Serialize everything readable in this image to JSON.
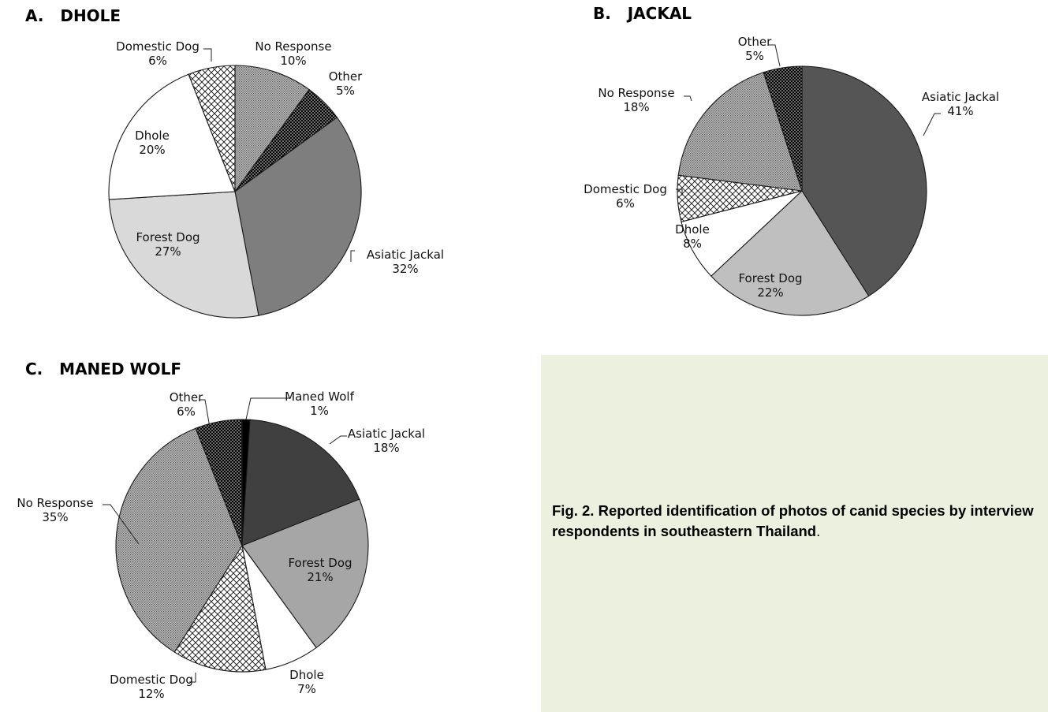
{
  "figure": {
    "caption_bold": "Fig. 2.  Reported identification of photos of canid species by interview respondents in southeastern Thailand",
    "caption_end": "."
  },
  "colors": {
    "Asiatic Jackal": "#7e7e7e",
    "Forest Dog": "#d9d9d9",
    "Dhole": "#ffffff",
    "Domestic Dog": "crosshatch",
    "No Response": "#a6a6a6-dotted",
    "Other": "#000000-dotted",
    "Maned Wolf": "#000000"
  },
  "chart_data": [
    {
      "panel": "A",
      "type": "pie",
      "title": "A.   DHOLE",
      "slices": [
        {
          "label": "No Response",
          "value": 10,
          "value_label": "10%"
        },
        {
          "label": "Other",
          "value": 5,
          "value_label": "5%"
        },
        {
          "label": "Asiatic Jackal",
          "value": 32,
          "value_label": "32%"
        },
        {
          "label": "Forest Dog",
          "value": 27,
          "value_label": "27%"
        },
        {
          "label": "Dhole",
          "value": 20,
          "value_label": "20%"
        },
        {
          "label": "Domestic Dog",
          "value": 6,
          "value_label": "6%"
        }
      ]
    },
    {
      "panel": "B",
      "type": "pie",
      "title": "B.   JACKAL",
      "slices": [
        {
          "label": "Asiatic Jackal",
          "value": 41,
          "value_label": "41%"
        },
        {
          "label": "Forest Dog",
          "value": 22,
          "value_label": "22%"
        },
        {
          "label": "Dhole",
          "value": 8,
          "value_label": "8%"
        },
        {
          "label": "Domestic Dog",
          "value": 6,
          "value_label": "6%"
        },
        {
          "label": "No Response",
          "value": 18,
          "value_label": "18%"
        },
        {
          "label": "Other",
          "value": 5,
          "value_label": "5%"
        }
      ]
    },
    {
      "panel": "C",
      "type": "pie",
      "title": "C.   MANED WOLF",
      "slices": [
        {
          "label": "Maned Wolf",
          "value": 1,
          "value_label": "1%"
        },
        {
          "label": "Asiatic Jackal",
          "value": 18,
          "value_label": "18%"
        },
        {
          "label": "Forest Dog",
          "value": 21,
          "value_label": "21%"
        },
        {
          "label": "Dhole",
          "value": 7,
          "value_label": "7%"
        },
        {
          "label": "Domestic Dog",
          "value": 12,
          "value_label": "12%"
        },
        {
          "label": "No Response",
          "value": 35,
          "value_label": "35%"
        },
        {
          "label": "Other",
          "value": 6,
          "value_label": "6%"
        }
      ]
    }
  ]
}
